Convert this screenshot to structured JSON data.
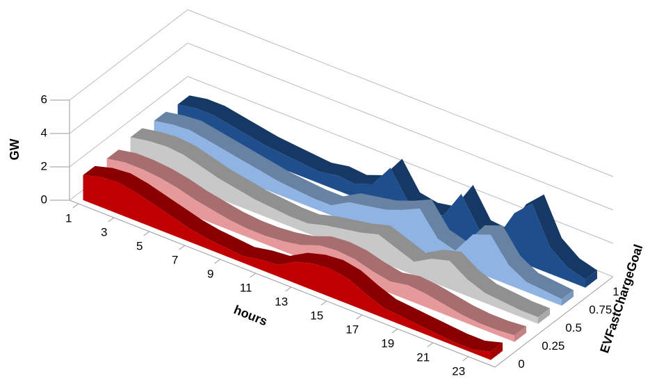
{
  "chart_data": {
    "type": "ribbon3d",
    "y_label": "GW",
    "x_label": "hours",
    "z_label": "EVFastChargeGoal",
    "x": [
      1,
      2,
      3,
      4,
      5,
      6,
      7,
      8,
      9,
      10,
      11,
      12,
      13,
      14,
      15,
      16,
      17,
      18,
      19,
      20,
      21,
      22,
      23,
      24
    ],
    "xlim": [
      1,
      24
    ],
    "xticks": [
      1,
      3,
      5,
      7,
      9,
      11,
      13,
      15,
      17,
      19,
      21,
      23
    ],
    "ylim": [
      0,
      6
    ],
    "yticks": [
      0,
      2,
      4,
      6
    ],
    "grid": true,
    "series": [
      {
        "name": "0",
        "color": "#c00000",
        "values": [
          1.5,
          1.8,
          1.9,
          1.7,
          1.4,
          1.1,
          0.8,
          0.6,
          0.5,
          0.4,
          0.6,
          0.7,
          1.3,
          1.6,
          1.7,
          1.5,
          1.0,
          0.6,
          0.5,
          0.4,
          0.3,
          0.2,
          0.2,
          0.5
        ]
      },
      {
        "name": "0.25",
        "color": "#e6999a",
        "values": [
          1.4,
          1.6,
          1.6,
          1.5,
          1.3,
          1.0,
          0.8,
          0.6,
          0.5,
          0.5,
          0.6,
          0.8,
          1.2,
          1.3,
          1.2,
          0.9,
          0.7,
          0.9,
          0.8,
          0.6,
          0.4,
          0.3,
          0.3,
          0.4
        ]
      },
      {
        "name": "0.5",
        "color": "#c8c8c8",
        "values": [
          1.6,
          1.8,
          1.9,
          1.8,
          1.5,
          1.2,
          1.0,
          0.8,
          0.7,
          0.6,
          0.6,
          0.9,
          1.1,
          1.3,
          1.6,
          1.2,
          0.8,
          1.4,
          1.7,
          1.0,
          0.6,
          0.5,
          0.4,
          0.4
        ]
      },
      {
        "name": "0.75",
        "color": "#8fb4e3",
        "values": [
          1.5,
          1.7,
          1.8,
          1.6,
          1.4,
          1.2,
          1.0,
          0.8,
          0.7,
          0.6,
          0.6,
          1.2,
          1.4,
          1.6,
          2.0,
          2.5,
          1.1,
          0.8,
          2.2,
          2.6,
          1.2,
          0.6,
          0.5,
          0.4
        ]
      },
      {
        "name": "1",
        "color": "#1f4e8c",
        "values": [
          1.4,
          1.6,
          1.6,
          1.4,
          1.2,
          1.0,
          0.9,
          0.8,
          0.7,
          0.9,
          0.8,
          1.2,
          2.6,
          1.0,
          0.8,
          1.0,
          2.7,
          1.0,
          0.9,
          2.8,
          3.8,
          1.6,
          0.8,
          0.5
        ]
      }
    ]
  }
}
